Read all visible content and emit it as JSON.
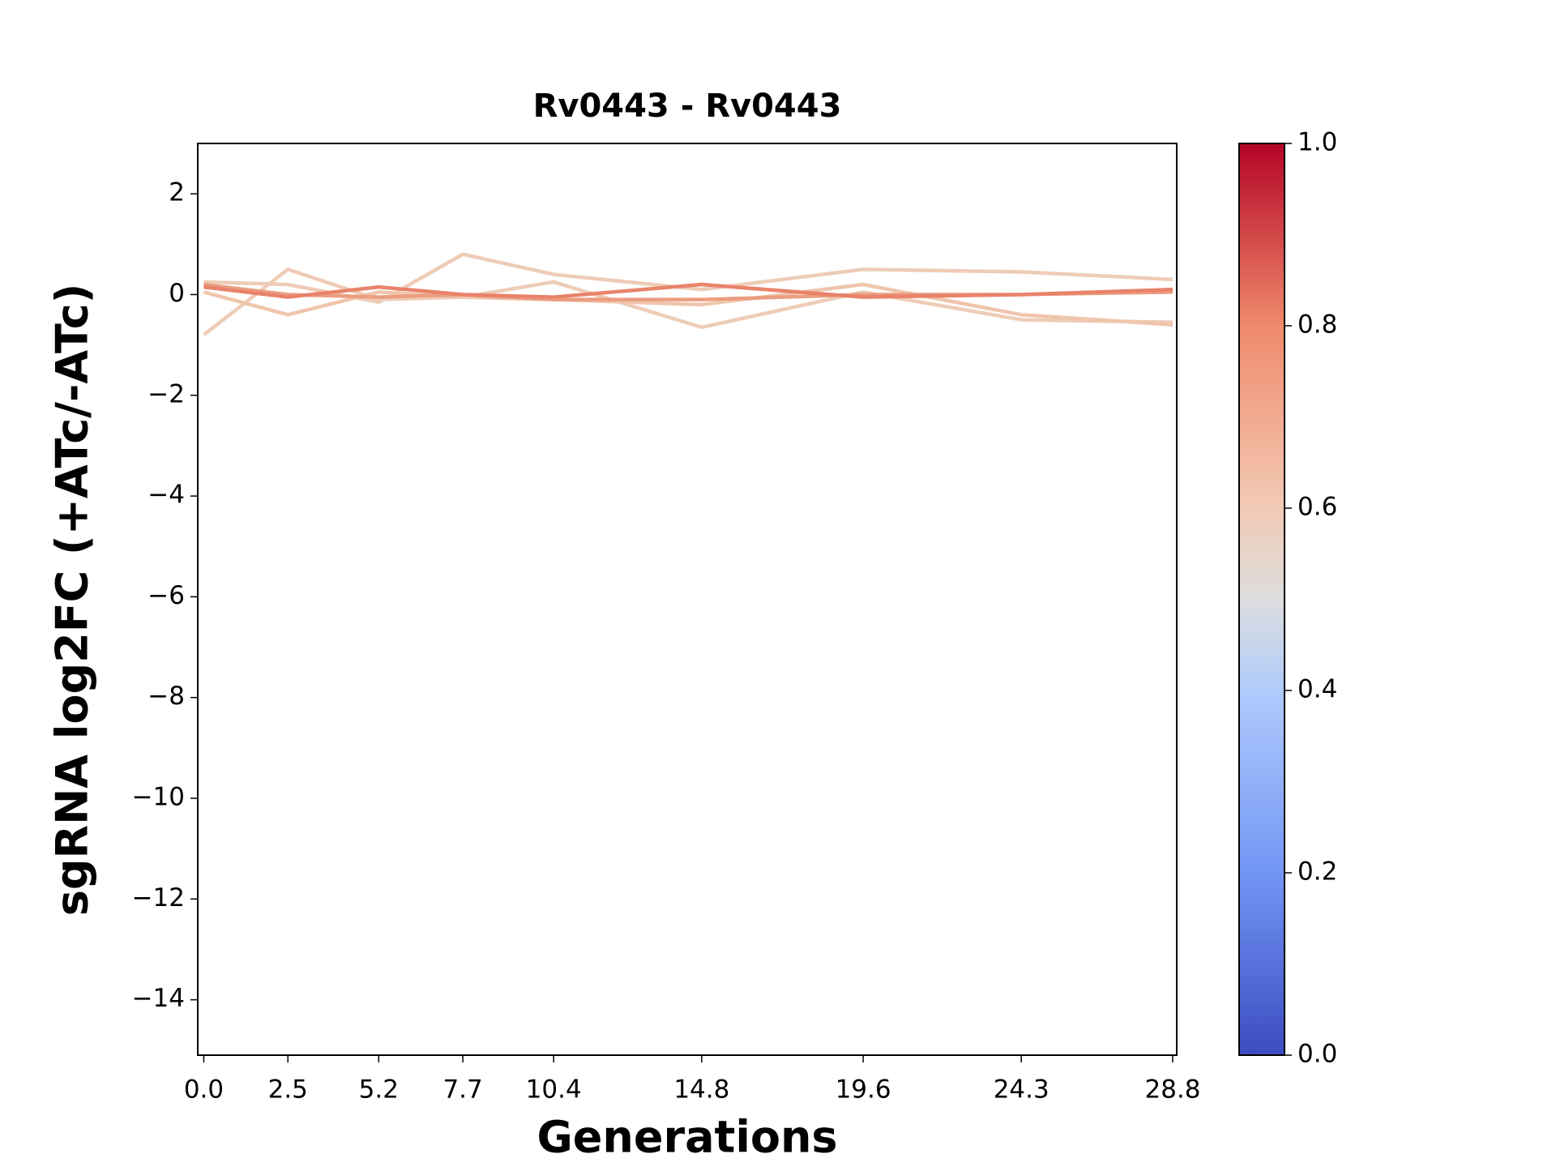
{
  "chart_data": {
    "type": "line",
    "title": "Rv0443 - Rv0443",
    "x_label": "Generations",
    "y_label": "sgRNA log2FC (+ATc/-ATc)",
    "x": [
      0,
      2.5,
      5.2,
      7.7,
      10.4,
      14.8,
      19.6,
      24.3,
      28.8
    ],
    "series": [
      {
        "color": "#eeccb6",
        "values": [
          -0.8,
          0.5,
          -0.1,
          -0.05,
          0.25,
          -0.65,
          0.05,
          -0.5,
          -0.55
        ]
      },
      {
        "color": "#eeccb6",
        "values": [
          0.25,
          0.2,
          -0.15,
          0.8,
          0.4,
          0.1,
          0.5,
          0.45,
          0.3
        ]
      },
      {
        "color": "#efc5ac",
        "values": [
          0.05,
          -0.4,
          0.05,
          -0.05,
          -0.1,
          -0.2,
          0.2,
          -0.4,
          -0.6
        ]
      },
      {
        "color": "#eb9d80",
        "values": [
          0.2,
          0.0,
          -0.05,
          0.0,
          -0.1,
          -0.1,
          0.0,
          0.0,
          0.05
        ]
      },
      {
        "color": "#e8836a",
        "values": [
          0.15,
          -0.05,
          0.15,
          0.0,
          -0.05,
          0.2,
          -0.05,
          0.0,
          0.1
        ]
      }
    ],
    "xlim": [
      -0.18,
      28.92
    ],
    "xticks": [
      {
        "value": 0,
        "label": "0.0"
      },
      2.5,
      5.2,
      7.7,
      10.4,
      14.8,
      19.6,
      24.3,
      28.8
    ],
    "ylim": [
      -15.1,
      3
    ],
    "yticks": [
      2,
      0,
      {
        "value": -2,
        "label": "−2"
      },
      {
        "value": -4,
        "label": "−4"
      },
      {
        "value": -6,
        "label": "−6"
      },
      {
        "value": -8,
        "label": "−8"
      },
      {
        "value": -10,
        "label": "−10"
      },
      {
        "value": -12,
        "label": "−12"
      },
      {
        "value": -14,
        "label": "−14"
      }
    ],
    "colorbar": {
      "lim": [
        0,
        1
      ],
      "ticks": [
        {
          "value": 0,
          "label": "0.0"
        },
        0.2,
        0.4,
        0.6,
        0.8,
        {
          "value": 1,
          "label": "1.0"
        }
      ]
    }
  }
}
